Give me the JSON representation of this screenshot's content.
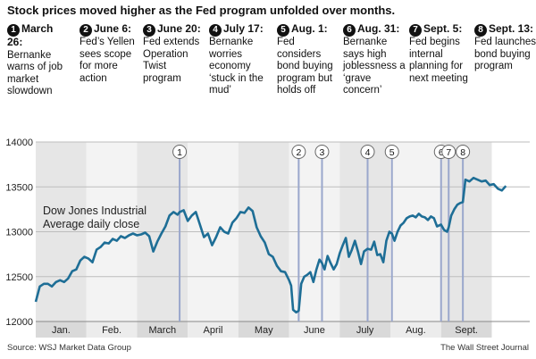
{
  "headline": "Stock prices moved higher as the Fed program unfolded over months.",
  "source": "Source: WSJ Market Data Group",
  "credit": "The Wall Street Journal",
  "events": [
    {
      "num": "1",
      "date": "March 26:",
      "text": "Bernanke warns of job market slowdown"
    },
    {
      "num": "2",
      "date": "June 6:",
      "text": "Fed’s Yellen sees scope for more action"
    },
    {
      "num": "3",
      "date": "June 20:",
      "text": "Fed extends Operation Twist program"
    },
    {
      "num": "4",
      "date": "July 17:",
      "text": "Bernanke worries economy ‘stuck in the mud’"
    },
    {
      "num": "5",
      "date": "Aug. 1:",
      "text": "Fed considers bond buying program but holds off"
    },
    {
      "num": "6",
      "date": "Aug. 31:",
      "text": "Bernanke says high joblessness a ‘grave concern’"
    },
    {
      "num": "7",
      "date": "Sept. 5:",
      "text": "Fed begins internal planning for next meeting"
    },
    {
      "num": "8",
      "date": "Sept. 13:",
      "text": "Fed launches bond buying program"
    }
  ],
  "chart_data": {
    "type": "line",
    "title": "Stock prices moved higher as the Fed program unfolded over months.",
    "series_label": "Dow Jones Industrial Average daily close",
    "series_label_lines": [
      "Dow Jones Industrial",
      "Average daily close"
    ],
    "months": [
      "Jan.",
      "Feb.",
      "March",
      "April",
      "May",
      "June",
      "July",
      "Aug.",
      "Sept."
    ],
    "yticks": [
      "14000",
      "13500",
      "13000",
      "12500",
      "12000"
    ],
    "ylim": [
      12000,
      14000
    ],
    "xlim": [
      0,
      9.75
    ],
    "x_unit": "months since Jan. 1",
    "line_color": "#1e6e96",
    "event_markers": [
      {
        "num": "1",
        "x": 2.84
      },
      {
        "num": "2",
        "x": 5.19
      },
      {
        "num": "3",
        "x": 5.65
      },
      {
        "num": "4",
        "x": 6.55
      },
      {
        "num": "5",
        "x": 7.03
      },
      {
        "num": "6",
        "x": 8.0
      },
      {
        "num": "7",
        "x": 8.15
      },
      {
        "num": "8",
        "x": 8.43
      }
    ],
    "points": [
      [
        0.0,
        12220
      ],
      [
        0.08,
        12390
      ],
      [
        0.16,
        12420
      ],
      [
        0.24,
        12420
      ],
      [
        0.32,
        12390
      ],
      [
        0.4,
        12440
      ],
      [
        0.48,
        12460
      ],
      [
        0.56,
        12440
      ],
      [
        0.64,
        12480
      ],
      [
        0.72,
        12560
      ],
      [
        0.8,
        12580
      ],
      [
        0.88,
        12680
      ],
      [
        0.96,
        12720
      ],
      [
        1.04,
        12700
      ],
      [
        1.12,
        12660
      ],
      [
        1.2,
        12800
      ],
      [
        1.28,
        12830
      ],
      [
        1.36,
        12880
      ],
      [
        1.44,
        12870
      ],
      [
        1.52,
        12920
      ],
      [
        1.6,
        12900
      ],
      [
        1.68,
        12950
      ],
      [
        1.76,
        12930
      ],
      [
        1.84,
        12960
      ],
      [
        1.92,
        12980
      ],
      [
        2.0,
        12960
      ],
      [
        2.08,
        12970
      ],
      [
        2.16,
        12990
      ],
      [
        2.24,
        12950
      ],
      [
        2.32,
        12780
      ],
      [
        2.4,
        12890
      ],
      [
        2.48,
        12980
      ],
      [
        2.56,
        13060
      ],
      [
        2.64,
        13180
      ],
      [
        2.72,
        13220
      ],
      [
        2.8,
        13190
      ],
      [
        2.84,
        13220
      ],
      [
        2.92,
        13240
      ],
      [
        3.0,
        13120
      ],
      [
        3.08,
        13180
      ],
      [
        3.16,
        13220
      ],
      [
        3.24,
        13080
      ],
      [
        3.32,
        12940
      ],
      [
        3.4,
        12980
      ],
      [
        3.48,
        12850
      ],
      [
        3.56,
        12940
      ],
      [
        3.64,
        13050
      ],
      [
        3.72,
        13000
      ],
      [
        3.8,
        12980
      ],
      [
        3.88,
        13100
      ],
      [
        3.96,
        13150
      ],
      [
        4.04,
        13220
      ],
      [
        4.12,
        13210
      ],
      [
        4.2,
        13270
      ],
      [
        4.28,
        13230
      ],
      [
        4.36,
        13050
      ],
      [
        4.44,
        12950
      ],
      [
        4.52,
        12880
      ],
      [
        4.6,
        12750
      ],
      [
        4.68,
        12720
      ],
      [
        4.76,
        12620
      ],
      [
        4.84,
        12560
      ],
      [
        4.92,
        12550
      ],
      [
        5.0,
        12460
      ],
      [
        5.04,
        12400
      ],
      [
        5.08,
        12130
      ],
      [
        5.14,
        12101
      ],
      [
        5.19,
        12120
      ],
      [
        5.24,
        12420
      ],
      [
        5.3,
        12500
      ],
      [
        5.36,
        12520
      ],
      [
        5.42,
        12550
      ],
      [
        5.48,
        12440
      ],
      [
        5.54,
        12580
      ],
      [
        5.6,
        12690
      ],
      [
        5.65,
        12650
      ],
      [
        5.7,
        12580
      ],
      [
        5.76,
        12730
      ],
      [
        5.82,
        12650
      ],
      [
        5.88,
        12580
      ],
      [
        5.94,
        12640
      ],
      [
        6.0,
        12760
      ],
      [
        6.06,
        12850
      ],
      [
        6.12,
        12930
      ],
      [
        6.18,
        12720
      ],
      [
        6.24,
        12800
      ],
      [
        6.3,
        12900
      ],
      [
        6.36,
        12780
      ],
      [
        6.42,
        12640
      ],
      [
        6.48,
        12780
      ],
      [
        6.55,
        12810
      ],
      [
        6.62,
        12800
      ],
      [
        6.68,
        12890
      ],
      [
        6.74,
        12740
      ],
      [
        6.8,
        12750
      ],
      [
        6.86,
        12660
      ],
      [
        6.92,
        12900
      ],
      [
        6.98,
        13000
      ],
      [
        7.03,
        12980
      ],
      [
        7.08,
        12900
      ],
      [
        7.14,
        13000
      ],
      [
        7.2,
        13070
      ],
      [
        7.26,
        13100
      ],
      [
        7.32,
        13150
      ],
      [
        7.38,
        13170
      ],
      [
        7.44,
        13180
      ],
      [
        7.5,
        13160
      ],
      [
        7.56,
        13200
      ],
      [
        7.62,
        13170
      ],
      [
        7.68,
        13160
      ],
      [
        7.74,
        13130
      ],
      [
        7.8,
        13170
      ],
      [
        7.86,
        13150
      ],
      [
        7.92,
        13060
      ],
      [
        8.0,
        13080
      ],
      [
        8.06,
        13020
      ],
      [
        8.12,
        13000
      ],
      [
        8.15,
        13050
      ],
      [
        8.2,
        13180
      ],
      [
        8.26,
        13250
      ],
      [
        8.32,
        13300
      ],
      [
        8.38,
        13320
      ],
      [
        8.43,
        13330
      ],
      [
        8.48,
        13580
      ],
      [
        8.56,
        13560
      ],
      [
        8.64,
        13600
      ],
      [
        8.72,
        13580
      ],
      [
        8.8,
        13560
      ],
      [
        8.88,
        13570
      ],
      [
        8.96,
        13520
      ],
      [
        9.04,
        13530
      ],
      [
        9.12,
        13480
      ],
      [
        9.2,
        13460
      ],
      [
        9.28,
        13510
      ]
    ]
  }
}
